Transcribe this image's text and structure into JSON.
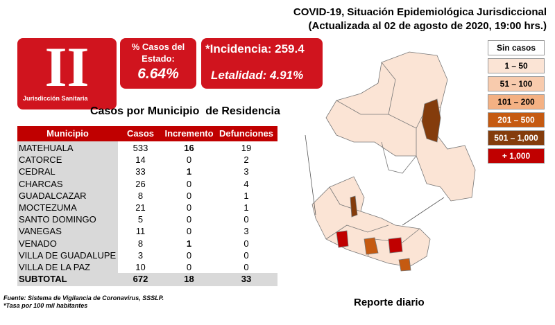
{
  "header": {
    "title": "COVID-19, Situación Epidemiológica Jurisdiccional",
    "subtitle": "(Actualizada al 02 de agosto de 2020, 19:00 hrs.)"
  },
  "badge": {
    "numeral": "II",
    "label": "Jurisdicción Sanitaria"
  },
  "state_share": {
    "label": "% Casos del Estado:",
    "value": "6.64%"
  },
  "rates": {
    "incidence": "*Incidencia: 259.4",
    "lethality": "Letalidad: 4.91%"
  },
  "legend": [
    {
      "label": "Sin casos",
      "color": "#ffffff",
      "text": "#000000"
    },
    {
      "label": "1 – 50",
      "color": "#fbe4d5",
      "text": "#000000"
    },
    {
      "label": "51 – 100",
      "color": "#f8cbad",
      "text": "#000000"
    },
    {
      "label": "101 – 200",
      "color": "#f4b183",
      "text": "#000000"
    },
    {
      "label": "201 – 500",
      "color": "#c55a11",
      "text": "#ffffff"
    },
    {
      "label": "501 – 1,000",
      "color": "#843c0c",
      "text": "#ffffff"
    },
    {
      "label": "+ 1,000",
      "color": "#c00000",
      "text": "#ffffff"
    }
  ],
  "table": {
    "title": "Casos por Municipio  de Residencia",
    "header": [
      "Municipio",
      "Casos",
      "Incremento",
      "Defunciones"
    ],
    "rows": [
      [
        "MATEHUALA",
        533,
        16,
        19
      ],
      [
        "CATORCE",
        14,
        0,
        2
      ],
      [
        "CEDRAL",
        33,
        1,
        3
      ],
      [
        "CHARCAS",
        26,
        0,
        4
      ],
      [
        "GUADALCAZAR",
        8,
        0,
        1
      ],
      [
        "MOCTEZUMA",
        21,
        0,
        1
      ],
      [
        "SANTO DOMINGO",
        5,
        0,
        0
      ],
      [
        "VANEGAS",
        11,
        0,
        3
      ],
      [
        "VENADO",
        8,
        1,
        0
      ],
      [
        "VILLA DE GUADALUPE",
        3,
        0,
        0
      ],
      [
        "VILLA DE LA PAZ",
        10,
        0,
        0
      ]
    ],
    "subtotal": [
      "SUBTOTAL",
      672,
      18,
      33
    ]
  },
  "footer": {
    "source": "Fuente: Sistema de Vigilancia  de Coronavirus, SSSLP.",
    "note": "*Tasa por 100 mil habitantes"
  },
  "caption": "Reporte diario"
}
